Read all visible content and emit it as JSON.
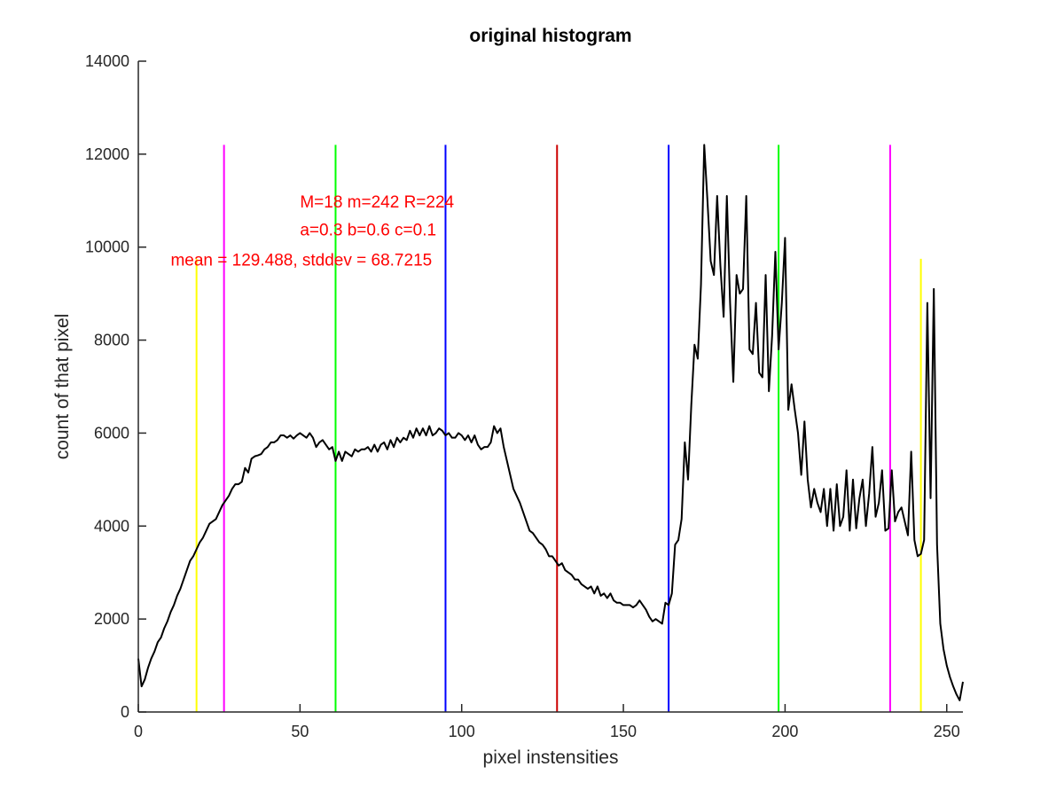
{
  "chart_data": {
    "type": "line",
    "title": "original histogram",
    "xlabel": "pixel instensities",
    "ylabel": "count of that pixel",
    "xlim": [
      0,
      255
    ],
    "ylim": [
      0,
      14000
    ],
    "x_ticks": [
      0,
      50,
      100,
      150,
      200,
      250
    ],
    "y_ticks": [
      0,
      2000,
      4000,
      6000,
      8000,
      10000,
      12000,
      14000
    ],
    "grid": false,
    "series": [
      {
        "color": "#000000",
        "points": [
          [
            0,
            1150
          ],
          [
            1,
            550
          ],
          [
            2,
            700
          ],
          [
            3,
            950
          ],
          [
            4,
            1150
          ],
          [
            5,
            1300
          ],
          [
            6,
            1500
          ],
          [
            7,
            1600
          ],
          [
            8,
            1800
          ],
          [
            9,
            1950
          ],
          [
            10,
            2150
          ],
          [
            11,
            2300
          ],
          [
            12,
            2500
          ],
          [
            13,
            2650
          ],
          [
            14,
            2850
          ],
          [
            15,
            3050
          ],
          [
            16,
            3250
          ],
          [
            17,
            3350
          ],
          [
            18,
            3500
          ],
          [
            19,
            3650
          ],
          [
            20,
            3750
          ],
          [
            21,
            3900
          ],
          [
            22,
            4050
          ],
          [
            23,
            4100
          ],
          [
            24,
            4150
          ],
          [
            25,
            4300
          ],
          [
            26,
            4450
          ],
          [
            27,
            4550
          ],
          [
            28,
            4650
          ],
          [
            29,
            4800
          ],
          [
            30,
            4900
          ],
          [
            31,
            4900
          ],
          [
            32,
            4950
          ],
          [
            33,
            5250
          ],
          [
            34,
            5150
          ],
          [
            35,
            5450
          ],
          [
            36,
            5500
          ],
          [
            37,
            5520
          ],
          [
            38,
            5550
          ],
          [
            39,
            5650
          ],
          [
            40,
            5700
          ],
          [
            41,
            5800
          ],
          [
            42,
            5800
          ],
          [
            43,
            5850
          ],
          [
            44,
            5950
          ],
          [
            45,
            5950
          ],
          [
            46,
            5900
          ],
          [
            47,
            5950
          ],
          [
            48,
            5880
          ],
          [
            49,
            5950
          ],
          [
            50,
            6000
          ],
          [
            51,
            5950
          ],
          [
            52,
            5900
          ],
          [
            53,
            6000
          ],
          [
            54,
            5900
          ],
          [
            55,
            5700
          ],
          [
            56,
            5800
          ],
          [
            57,
            5850
          ],
          [
            58,
            5750
          ],
          [
            59,
            5650
          ],
          [
            60,
            5700
          ],
          [
            61,
            5400
          ],
          [
            62,
            5600
          ],
          [
            63,
            5400
          ],
          [
            64,
            5600
          ],
          [
            65,
            5550
          ],
          [
            66,
            5500
          ],
          [
            67,
            5650
          ],
          [
            68,
            5600
          ],
          [
            69,
            5650
          ],
          [
            70,
            5650
          ],
          [
            71,
            5700
          ],
          [
            72,
            5600
          ],
          [
            73,
            5750
          ],
          [
            74,
            5600
          ],
          [
            75,
            5750
          ],
          [
            76,
            5800
          ],
          [
            77,
            5650
          ],
          [
            78,
            5850
          ],
          [
            79,
            5700
          ],
          [
            80,
            5900
          ],
          [
            81,
            5800
          ],
          [
            82,
            5900
          ],
          [
            83,
            5850
          ],
          [
            84,
            6050
          ],
          [
            85,
            5900
          ],
          [
            86,
            6100
          ],
          [
            87,
            5950
          ],
          [
            88,
            6100
          ],
          [
            89,
            5950
          ],
          [
            90,
            6150
          ],
          [
            91,
            5950
          ],
          [
            92,
            6000
          ],
          [
            93,
            6100
          ],
          [
            94,
            6050
          ],
          [
            95,
            5950
          ],
          [
            96,
            6000
          ],
          [
            97,
            5900
          ],
          [
            98,
            5900
          ],
          [
            99,
            6000
          ],
          [
            100,
            5950
          ],
          [
            101,
            5850
          ],
          [
            102,
            5950
          ],
          [
            103,
            5800
          ],
          [
            104,
            5950
          ],
          [
            105,
            5750
          ],
          [
            106,
            5650
          ],
          [
            107,
            5700
          ],
          [
            108,
            5700
          ],
          [
            109,
            5800
          ],
          [
            110,
            6150
          ],
          [
            111,
            6000
          ],
          [
            112,
            6100
          ],
          [
            113,
            5700
          ],
          [
            114,
            5400
          ],
          [
            115,
            5100
          ],
          [
            116,
            4800
          ],
          [
            117,
            4650
          ],
          [
            118,
            4500
          ],
          [
            119,
            4300
          ],
          [
            120,
            4100
          ],
          [
            121,
            3900
          ],
          [
            122,
            3850
          ],
          [
            123,
            3750
          ],
          [
            124,
            3650
          ],
          [
            125,
            3600
          ],
          [
            126,
            3500
          ],
          [
            127,
            3350
          ],
          [
            128,
            3350
          ],
          [
            129,
            3250
          ],
          [
            130,
            3150
          ],
          [
            131,
            3200
          ],
          [
            132,
            3050
          ],
          [
            133,
            3000
          ],
          [
            134,
            2950
          ],
          [
            135,
            2850
          ],
          [
            136,
            2850
          ],
          [
            137,
            2750
          ],
          [
            138,
            2700
          ],
          [
            139,
            2650
          ],
          [
            140,
            2700
          ],
          [
            141,
            2550
          ],
          [
            142,
            2700
          ],
          [
            143,
            2500
          ],
          [
            144,
            2550
          ],
          [
            145,
            2450
          ],
          [
            146,
            2550
          ],
          [
            147,
            2400
          ],
          [
            148,
            2350
          ],
          [
            149,
            2350
          ],
          [
            150,
            2300
          ],
          [
            151,
            2300
          ],
          [
            152,
            2300
          ],
          [
            153,
            2250
          ],
          [
            154,
            2300
          ],
          [
            155,
            2400
          ],
          [
            156,
            2300
          ],
          [
            157,
            2200
          ],
          [
            158,
            2050
          ],
          [
            159,
            1950
          ],
          [
            160,
            2000
          ],
          [
            161,
            1950
          ],
          [
            162,
            1900
          ],
          [
            163,
            2350
          ],
          [
            164,
            2300
          ],
          [
            165,
            2550
          ],
          [
            166,
            3600
          ],
          [
            167,
            3700
          ],
          [
            168,
            4150
          ],
          [
            169,
            5800
          ],
          [
            170,
            5000
          ],
          [
            171,
            6600
          ],
          [
            172,
            7900
          ],
          [
            173,
            7600
          ],
          [
            174,
            9200
          ],
          [
            175,
            12200
          ],
          [
            176,
            11000
          ],
          [
            177,
            9700
          ],
          [
            178,
            9400
          ],
          [
            179,
            11100
          ],
          [
            180,
            9600
          ],
          [
            181,
            8500
          ],
          [
            182,
            11100
          ],
          [
            183,
            8800
          ],
          [
            184,
            7100
          ],
          [
            185,
            9400
          ],
          [
            186,
            9000
          ],
          [
            187,
            9100
          ],
          [
            188,
            11100
          ],
          [
            189,
            7800
          ],
          [
            190,
            7700
          ],
          [
            191,
            8800
          ],
          [
            192,
            7300
          ],
          [
            193,
            7200
          ],
          [
            194,
            9400
          ],
          [
            195,
            6900
          ],
          [
            196,
            8100
          ],
          [
            197,
            9900
          ],
          [
            198,
            7800
          ],
          [
            199,
            8800
          ],
          [
            200,
            10200
          ],
          [
            201,
            6500
          ],
          [
            202,
            7050
          ],
          [
            203,
            6500
          ],
          [
            204,
            6000
          ],
          [
            205,
            5100
          ],
          [
            206,
            6250
          ],
          [
            207,
            5000
          ],
          [
            208,
            4400
          ],
          [
            209,
            4800
          ],
          [
            210,
            4500
          ],
          [
            211,
            4300
          ],
          [
            212,
            4800
          ],
          [
            213,
            4000
          ],
          [
            214,
            4800
          ],
          [
            215,
            3900
          ],
          [
            216,
            4900
          ],
          [
            217,
            4000
          ],
          [
            218,
            4200
          ],
          [
            219,
            5200
          ],
          [
            220,
            3900
          ],
          [
            221,
            5000
          ],
          [
            222,
            3950
          ],
          [
            223,
            4600
          ],
          [
            224,
            5000
          ],
          [
            225,
            4000
          ],
          [
            226,
            4700
          ],
          [
            227,
            5700
          ],
          [
            228,
            4200
          ],
          [
            229,
            4500
          ],
          [
            230,
            5200
          ],
          [
            231,
            3900
          ],
          [
            232,
            3950
          ],
          [
            233,
            5200
          ],
          [
            234,
            4100
          ],
          [
            235,
            4300
          ],
          [
            236,
            4400
          ],
          [
            237,
            4100
          ],
          [
            238,
            3800
          ],
          [
            239,
            5600
          ],
          [
            240,
            3700
          ],
          [
            241,
            3350
          ],
          [
            242,
            3400
          ],
          [
            243,
            3700
          ],
          [
            244,
            8800
          ],
          [
            245,
            4600
          ],
          [
            246,
            9100
          ],
          [
            247,
            3600
          ],
          [
            248,
            1900
          ],
          [
            249,
            1350
          ],
          [
            250,
            1000
          ],
          [
            251,
            750
          ],
          [
            252,
            550
          ],
          [
            253,
            380
          ],
          [
            254,
            250
          ],
          [
            255,
            650
          ]
        ]
      }
    ],
    "vertical_lines": [
      {
        "x": 18,
        "color": "#ffff00",
        "y_top": 9750
      },
      {
        "x": 242,
        "color": "#ffff00",
        "y_top": 9750
      },
      {
        "x": 26.5,
        "color": "#ff00ff",
        "y_top": 12200
      },
      {
        "x": 232.5,
        "color": "#ff00ff",
        "y_top": 12200
      },
      {
        "x": 61,
        "color": "#00ff00",
        "y_top": 12200
      },
      {
        "x": 198,
        "color": "#00ff00",
        "y_top": 12200
      },
      {
        "x": 95,
        "color": "#0000ff",
        "y_top": 12200
      },
      {
        "x": 164,
        "color": "#0000ff",
        "y_top": 12200
      },
      {
        "x": 129.488,
        "color": "#cc0000",
        "y_top": 12200
      }
    ],
    "annotations": [
      {
        "text": "M=18 m=242 R=224",
        "x": 50,
        "y": 10850,
        "color": "#ff0000"
      },
      {
        "text": "a=0.3 b=0.6 c=0.1",
        "x": 50,
        "y": 10250,
        "color": "#ff0000"
      },
      {
        "text": "mean = 129.488, stddev = 68.7215",
        "x": 10,
        "y": 9600,
        "color": "#ff0000"
      }
    ]
  }
}
